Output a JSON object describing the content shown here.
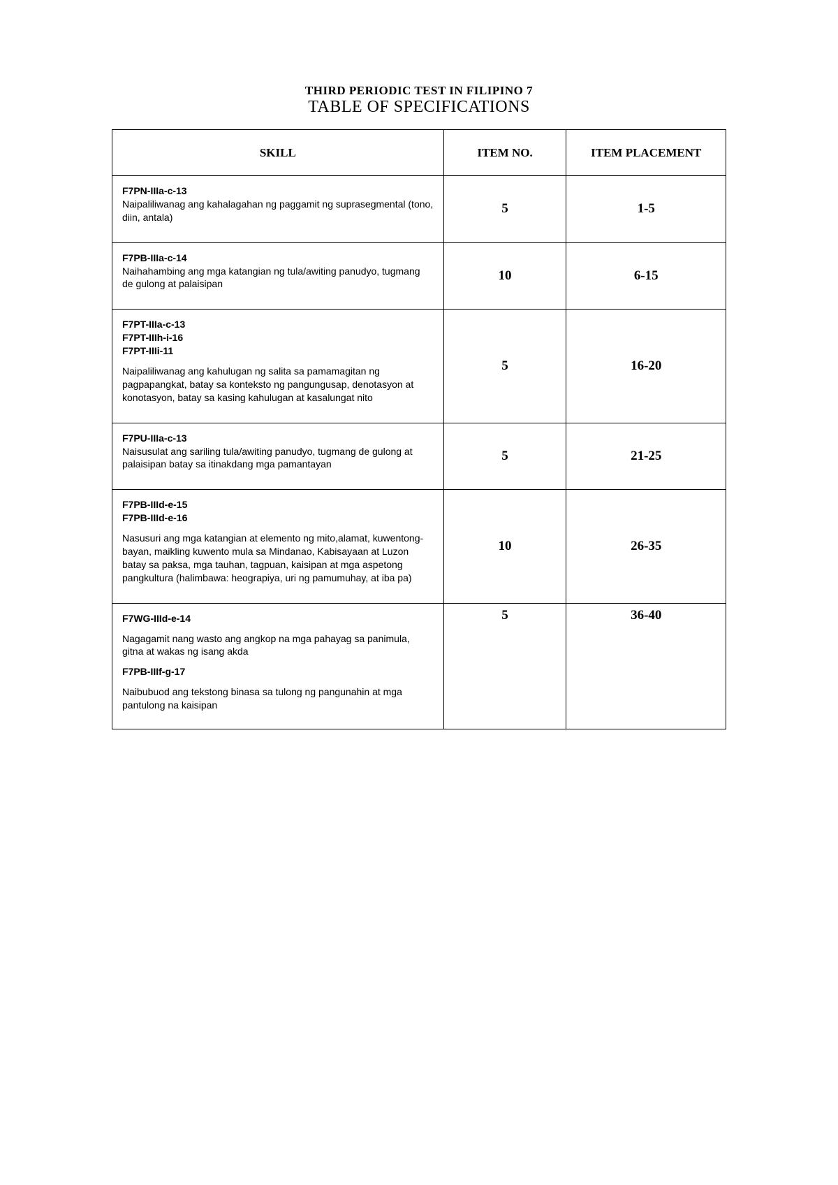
{
  "titles": {
    "line1": "THIRD PERIODIC TEST IN FILIPINO 7",
    "line2": "TABLE OF SPECIFICATIONS"
  },
  "headers": {
    "skill": "SKILL",
    "itemno": "ITEM NO.",
    "placement": "ITEM PLACEMENT"
  },
  "rows": [
    {
      "codes": [
        "F7PN-IIIa-c-13"
      ],
      "desc": "Naipaliliwanag ang kahalagahan ng paggamit ng suprasegmental (tono, diin, antala)",
      "itemno": "5",
      "placement": "1-5"
    },
    {
      "codes": [
        "F7PB-IIIa-c-14"
      ],
      "desc": "Naihahambing ang mga katangian ng tula/awiting panudyo, tugmang de gulong at palaisipan",
      "itemno": "10",
      "placement": "6-15"
    },
    {
      "codes": [
        "F7PT-IIIa-c-13",
        "F7PT-IIIh-i-16",
        "F7PT-IIIi-11"
      ],
      "desc": "Naipaliliwanag ang kahulugan ng salita sa pamamagitan ng pagpapangkat, batay sa konteksto ng pangungusap, denotasyon at konotasyon, batay sa kasing kahulugan at kasalungat nito",
      "itemno": "5",
      "placement": "16-20"
    },
    {
      "codes": [
        "F7PU-IIIa-c-13"
      ],
      "desc": "Naisusulat ang sariling tula/awiting panudyo, tugmang de gulong at palaisipan batay sa itinakdang mga pamantayan",
      "itemno": "5",
      "placement": "21-25"
    },
    {
      "codes": [
        "F7PB-IIId-e-15",
        "F7PB-IIId-e-16"
      ],
      "desc": "Nasusuri ang mga katangian at elemento ng mito,alamat, kuwentong-bayan, maikling kuwento mula sa Mindanao, Kabisayaan at Luzon batay sa paksa, mga tauhan, tagpuan, kaisipan at mga aspetong pangkultura (halimbawa: heograpiya, uri ng pamumuhay, at iba pa)",
      "itemno": "10",
      "placement": "26-35"
    },
    {
      "codes": [
        "F7WG-IIId-e-14"
      ],
      "desc": "Nagagamit nang wasto ang angkop na mga pahayag sa panimula, gitna at wakas ng isang akda",
      "codes2": [
        "F7PB-IIIf-g-17"
      ],
      "desc2": "Naibubuod ang tekstong binasa sa tulong ng pangunahin at mga pantulong na kaisipan",
      "itemno": "5",
      "placement": "36-40"
    }
  ]
}
